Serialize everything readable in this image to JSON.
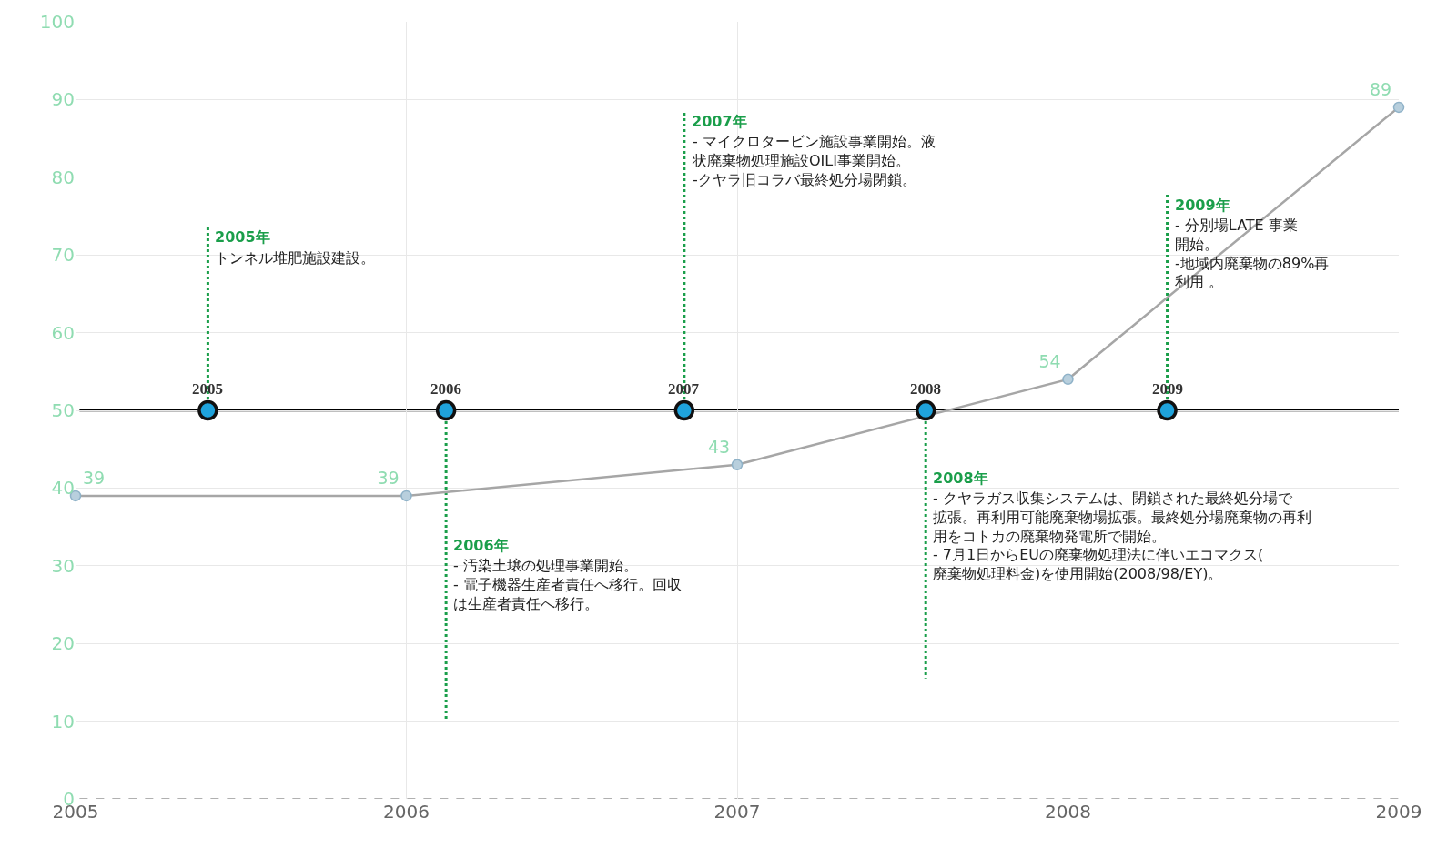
{
  "chart_data": {
    "type": "line",
    "x": [
      2005,
      2006,
      2007,
      2008,
      2009
    ],
    "series": [
      {
        "color": "#a6a6a6",
        "values": [
          39,
          39,
          43,
          54,
          89
        ],
        "value_labels": [
          "39",
          "39",
          "43",
          "54",
          "89"
        ],
        "marker": "circle",
        "line_style": "solid"
      },
      {
        "type": "scatter",
        "color": "#1fa3dc",
        "x": [
          2005.4,
          2006.12,
          2006.84,
          2007.57,
          2008.3
        ],
        "values": [
          50,
          50,
          50,
          50,
          50
        ],
        "marker": "circle"
      },
      {
        "type": "line",
        "color": "#1a9e4a",
        "x": [
          2005.4,
          2005.4
        ],
        "values": [
          50,
          73.6
        ],
        "marker": "none",
        "line_style": "dotted"
      },
      {
        "type": "line",
        "color": "#1a9e4a",
        "x": [
          2006.12,
          2006.12
        ],
        "values": [
          50,
          10.3
        ],
        "marker": "none",
        "line_style": "dotted"
      },
      {
        "type": "line",
        "color": "#1a9e4a",
        "x": [
          2006.84,
          2006.84
        ],
        "values": [
          50,
          88.3
        ],
        "marker": "none",
        "line_style": "dotted"
      },
      {
        "type": "line",
        "color": "#1a9e4a",
        "x": [
          2007.57,
          2007.57
        ],
        "values": [
          50,
          15.5
        ],
        "marker": "none",
        "line_style": "dotted"
      },
      {
        "type": "line",
        "color": "#1a9e4a",
        "x": [
          2008.3,
          2008.3
        ],
        "values": [
          50,
          78
        ],
        "marker": "none",
        "line_style": "dotted"
      }
    ],
    "xlim": [
      2005,
      2009
    ],
    "xticks": [
      2005,
      2006,
      2007,
      2008,
      2009
    ],
    "ylim": [
      0,
      100
    ],
    "yticks": [
      0,
      10,
      20,
      30,
      40,
      50,
      60,
      70,
      80,
      90,
      100
    ],
    "grid": true,
    "ref_lines": [
      {
        "axis": "y",
        "value": 50,
        "color": "#000000",
        "line_style": "solid"
      },
      {
        "axis": "x",
        "value": 2005,
        "color": "#5cc98a",
        "line_style": "dashed"
      },
      {
        "axis": "y",
        "value": 0,
        "color": "#b0b0b0",
        "line_style": "dashed"
      }
    ],
    "annotations": [
      "2005",
      "2006",
      "2007",
      "2008",
      "2009",
      {
        "text": "2005年",
        "x": 2005.4,
        "y": 73.6
      },
      {
        "text": "トンネル堆肥施設建設。",
        "x": 2005.4,
        "y": 71
      },
      {
        "text": "2006年",
        "x": 2006.12,
        "y": 34
      },
      {
        "text": "- 汚染土壌の処理事業開始。\n- 電子機器生産者責任へ移行。回収は生産者責任へ移行。",
        "x": 2006.12,
        "y": 31.4
      },
      {
        "text": "2007年",
        "x": 2006.84,
        "y": 88.5
      },
      {
        "text": "- マイクロタービン施設事業開始。液状廃棄物処理施設OILI事業開始。\n-クヤラ旧コラバ最終処分場閉鎖。",
        "x": 2006.84,
        "y": 85.9
      },
      {
        "text": "2008年",
        "x": 2007.57,
        "y": 42.6
      },
      {
        "text": "- クヤラガス収集システムは、閉鎖された最終処分場で拡張。再利用可能廃棄物場拡張。最終処分場廃棄物の再利用をコトカの廃棄物発電所で開始。\n- 7月1日からEUの廃棄物処理法に伴いエコマクス(廃棄物処理料金)を使用開始(2008/98/EY)。",
        "x": 2007.57,
        "y": 40
      },
      {
        "text": "2009年",
        "x": 2008.3,
        "y": 77.8
      },
      {
        "text": "- 分別場LATE 事業開始。\n-地域内廃棄物の89%再利用 。",
        "x": 2008.3,
        "y": 75.2
      }
    ]
  }
}
